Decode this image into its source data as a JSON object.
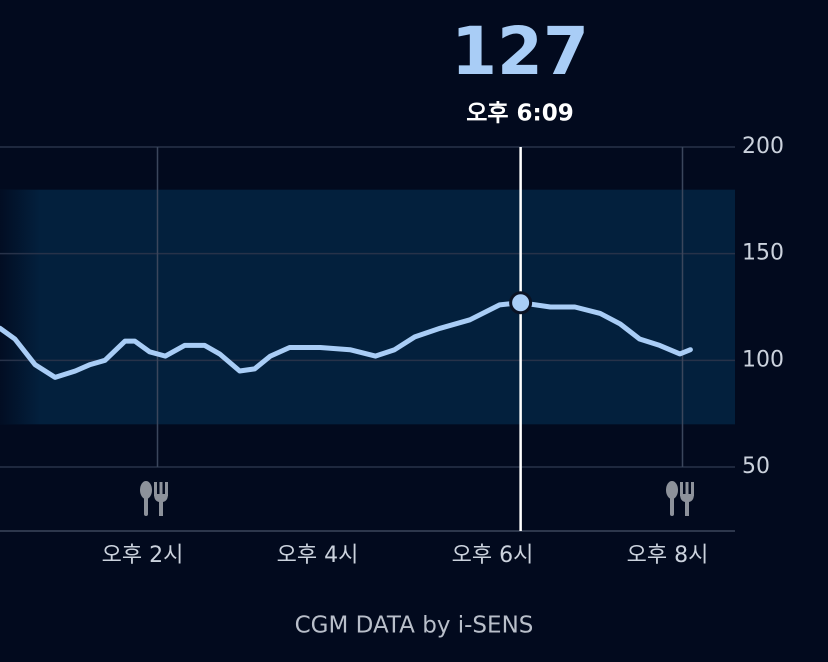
{
  "chart_data": {
    "type": "line",
    "current_value": 127,
    "current_time": "오후 6:09",
    "cursor_x": 18.15,
    "footer": "CGM DATA by i-SENS",
    "x": [
      12.2,
      12.37,
      12.6,
      12.83,
      13.06,
      13.23,
      13.4,
      13.63,
      13.74,
      13.91,
      14.09,
      14.31,
      14.54,
      14.71,
      14.94,
      15.11,
      15.29,
      15.51,
      15.86,
      16.2,
      16.49,
      16.71,
      16.94,
      17.23,
      17.57,
      17.91,
      18.15,
      18.49,
      18.77,
      19.06,
      19.29,
      19.51,
      19.74,
      19.97,
      20.09
    ],
    "values": [
      115,
      110,
      98,
      92,
      95,
      98,
      100,
      109,
      109,
      104,
      102,
      107,
      107,
      103,
      95,
      96,
      102,
      106,
      106,
      105,
      102,
      105,
      111,
      115,
      119,
      126,
      127,
      125,
      125,
      122,
      117,
      110,
      107,
      103,
      105
    ],
    "color": "#a9cdf6",
    "target_range": [
      70,
      180
    ],
    "xlim": [
      12.2,
      20.6
    ],
    "ylim": [
      20,
      200
    ],
    "yticks": [
      50,
      100,
      150,
      200
    ],
    "xticks": [
      {
        "value": 14,
        "label": "오후 2시"
      },
      {
        "value": 16,
        "label": "오후 4시"
      },
      {
        "value": 18,
        "label": "오후 6시"
      },
      {
        "value": 20,
        "label": "오후 8시"
      }
    ],
    "vgrid": [
      14,
      20
    ],
    "grid": true
  }
}
